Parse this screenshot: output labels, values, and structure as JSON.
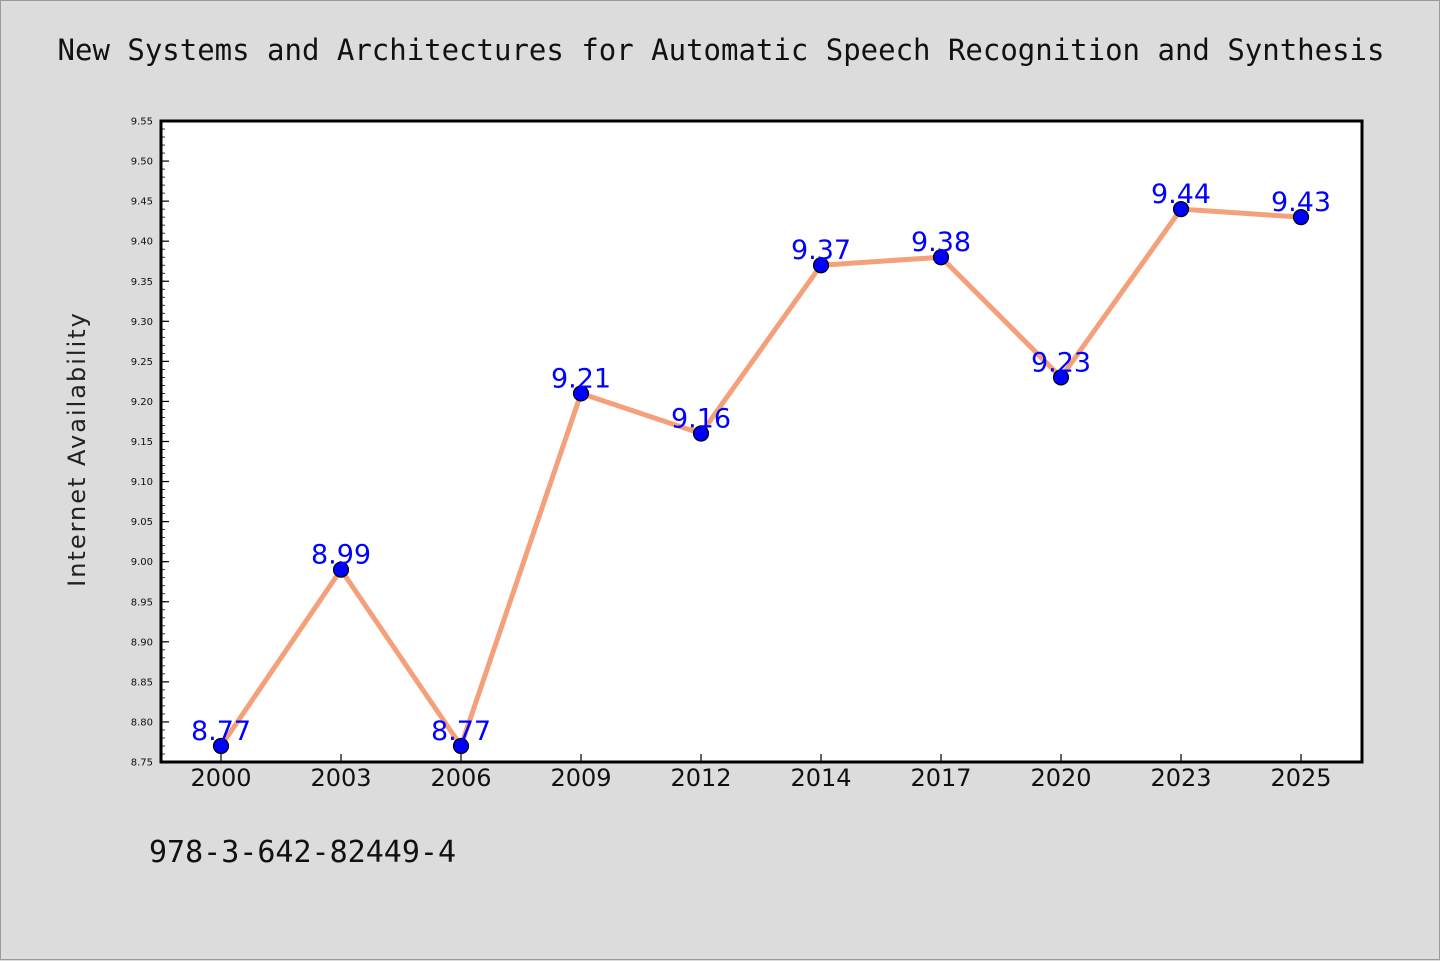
{
  "title": "New Systems and Architectures for Automatic Speech Recognition and Synthesis",
  "footnote": "978-3-642-82449-4",
  "colors": {
    "background": "#dcdcdc",
    "plot_background": "#ffffff",
    "line": "#f4a07a",
    "marker": "#0000ff",
    "data_label": "#0000ff"
  },
  "chart_data": {
    "type": "line",
    "title": "New Systems and Architectures for Automatic Speech Recognition and Synthesis",
    "xlabel": "",
    "ylabel": "Internet Availability",
    "categories": [
      "2000",
      "2003",
      "2006",
      "2009",
      "2012",
      "2014",
      "2017",
      "2020",
      "2023",
      "2025"
    ],
    "series": [
      {
        "values": [
          8.77,
          8.99,
          8.77,
          9.21,
          9.16,
          9.37,
          9.38,
          9.23,
          9.44,
          9.43
        ],
        "labels": [
          "8.77",
          "8.99",
          "8.77",
          "9.21",
          "9.16",
          "9.37",
          "9.38",
          "9.23",
          "9.44",
          "9.43"
        ]
      }
    ],
    "ylim": [
      8.75,
      9.55
    ],
    "yticks": [
      "8.75",
      "8.80",
      "8.85",
      "8.90",
      "8.95",
      "9.00",
      "9.05",
      "9.10",
      "9.15",
      "9.20",
      "9.25",
      "9.30",
      "9.35",
      "9.40",
      "9.45",
      "9.50",
      "9.55"
    ],
    "grid": false,
    "legend": "none"
  }
}
